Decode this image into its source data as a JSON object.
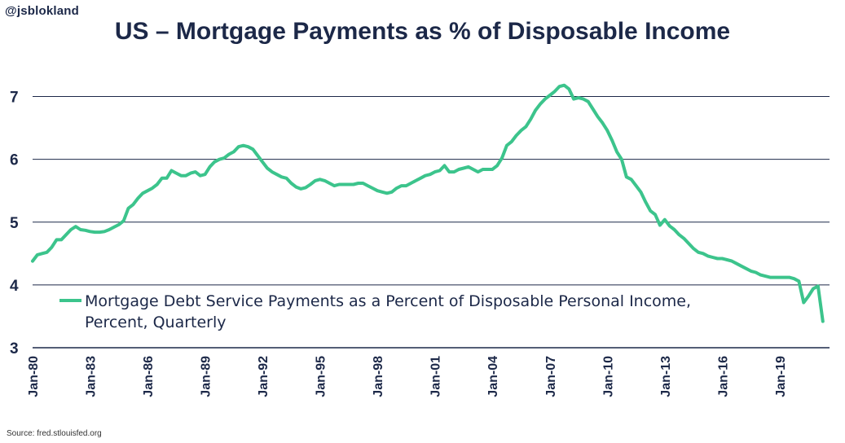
{
  "header": {
    "handle": "@jsblokland",
    "title": "US – Mortgage Payments as % of Disposable Income"
  },
  "footer": {
    "source": "Source: fred.stlouisfed.org"
  },
  "colors": {
    "line": "#3cc48c",
    "text": "#1c2848",
    "grid": "#1c2848"
  },
  "chart_data": {
    "type": "line",
    "title": "US – Mortgage Payments as % of Disposable Income",
    "xlabel": "",
    "ylabel": "",
    "ylim": [
      3,
      7.5
    ],
    "yticks": [
      3,
      4,
      5,
      6,
      7
    ],
    "xlim": [
      1980,
      2021.6
    ],
    "xticks": [
      {
        "label": "Jan-80",
        "year": 1980
      },
      {
        "label": "Jan-83",
        "year": 1983
      },
      {
        "label": "Jan-86",
        "year": 1986
      },
      {
        "label": "Jan-89",
        "year": 1989
      },
      {
        "label": "Jan-92",
        "year": 1992
      },
      {
        "label": "Jan-95",
        "year": 1995
      },
      {
        "label": "Jan-98",
        "year": 1998
      },
      {
        "label": "Jan-01",
        "year": 2001
      },
      {
        "label": "Jan-04",
        "year": 2004
      },
      {
        "label": "Jan-07",
        "year": 2007
      },
      {
        "label": "Jan-10",
        "year": 2010
      },
      {
        "label": "Jan-13",
        "year": 2013
      },
      {
        "label": "Jan-16",
        "year": 2016
      },
      {
        "label": "Jan-19",
        "year": 2019
      }
    ],
    "grid": "horizontal",
    "legend_placement": "lower-left",
    "series": [
      {
        "name": "Mortgage Debt Service Payments as a Percent of Disposable Personal Income, Percent, Quarterly",
        "legend_lines": [
          "Mortgage Debt Service Payments as a Percent of Disposable Personal Income,",
          "Percent, Quarterly"
        ],
        "x": [
          1980.0,
          1980.25,
          1980.5,
          1980.75,
          1981.0,
          1981.25,
          1981.5,
          1981.75,
          1982.0,
          1982.25,
          1982.5,
          1982.75,
          1983.0,
          1983.25,
          1983.5,
          1983.75,
          1984.0,
          1984.25,
          1984.5,
          1984.75,
          1985.0,
          1985.25,
          1985.5,
          1985.75,
          1986.0,
          1986.25,
          1986.5,
          1986.75,
          1987.0,
          1987.25,
          1987.5,
          1987.75,
          1988.0,
          1988.25,
          1988.5,
          1988.75,
          1989.0,
          1989.25,
          1989.5,
          1989.75,
          1990.0,
          1990.25,
          1990.5,
          1990.75,
          1991.0,
          1991.25,
          1991.5,
          1991.75,
          1992.0,
          1992.25,
          1992.5,
          1992.75,
          1993.0,
          1993.25,
          1993.5,
          1993.75,
          1994.0,
          1994.25,
          1994.5,
          1994.75,
          1995.0,
          1995.25,
          1995.5,
          1995.75,
          1996.0,
          1996.25,
          1996.5,
          1996.75,
          1997.0,
          1997.25,
          1997.5,
          1997.75,
          1998.0,
          1998.25,
          1998.5,
          1998.75,
          1999.0,
          1999.25,
          1999.5,
          1999.75,
          2000.0,
          2000.25,
          2000.5,
          2000.75,
          2001.0,
          2001.25,
          2001.5,
          2001.75,
          2002.0,
          2002.25,
          2002.5,
          2002.75,
          2003.0,
          2003.25,
          2003.5,
          2003.75,
          2004.0,
          2004.25,
          2004.5,
          2004.75,
          2005.0,
          2005.25,
          2005.5,
          2005.75,
          2006.0,
          2006.25,
          2006.5,
          2006.75,
          2007.0,
          2007.25,
          2007.5,
          2007.75,
          2008.0,
          2008.25,
          2008.5,
          2008.75,
          2009.0,
          2009.25,
          2009.5,
          2009.75,
          2010.0,
          2010.25,
          2010.5,
          2010.75,
          2011.0,
          2011.25,
          2011.5,
          2011.75,
          2012.0,
          2012.25,
          2012.5,
          2012.75,
          2013.0,
          2013.25,
          2013.5,
          2013.75,
          2014.0,
          2014.25,
          2014.5,
          2014.75,
          2015.0,
          2015.25,
          2015.5,
          2015.75,
          2016.0,
          2016.25,
          2016.5,
          2016.75,
          2017.0,
          2017.25,
          2017.5,
          2017.75,
          2018.0,
          2018.25,
          2018.5,
          2018.75,
          2019.0,
          2019.25,
          2019.5,
          2019.75,
          2020.0,
          2020.25,
          2020.5,
          2020.75,
          2021.0,
          2021.25
        ],
        "values": [
          4.38,
          4.48,
          4.5,
          4.52,
          4.6,
          4.72,
          4.72,
          4.8,
          4.88,
          4.93,
          4.88,
          4.87,
          4.85,
          4.84,
          4.84,
          4.85,
          4.88,
          4.92,
          4.96,
          5.02,
          5.22,
          5.28,
          5.38,
          5.46,
          5.5,
          5.54,
          5.6,
          5.7,
          5.7,
          5.82,
          5.78,
          5.74,
          5.74,
          5.78,
          5.8,
          5.74,
          5.76,
          5.88,
          5.96,
          6.0,
          6.02,
          6.08,
          6.12,
          6.2,
          6.22,
          6.2,
          6.16,
          6.06,
          5.96,
          5.86,
          5.8,
          5.76,
          5.72,
          5.7,
          5.62,
          5.56,
          5.53,
          5.55,
          5.6,
          5.66,
          5.68,
          5.66,
          5.62,
          5.58,
          5.6,
          5.6,
          5.6,
          5.6,
          5.62,
          5.62,
          5.58,
          5.54,
          5.5,
          5.48,
          5.46,
          5.48,
          5.54,
          5.58,
          5.58,
          5.62,
          5.66,
          5.7,
          5.74,
          5.76,
          5.8,
          5.82,
          5.9,
          5.8,
          5.8,
          5.84,
          5.86,
          5.88,
          5.84,
          5.8,
          5.84,
          5.84,
          5.84,
          5.9,
          6.02,
          6.22,
          6.28,
          6.38,
          6.46,
          6.52,
          6.64,
          6.78,
          6.88,
          6.96,
          7.02,
          7.08,
          7.16,
          7.18,
          7.12,
          6.96,
          6.98,
          6.96,
          6.92,
          6.8,
          6.68,
          6.58,
          6.46,
          6.3,
          6.12,
          6.0,
          5.72,
          5.68,
          5.58,
          5.48,
          5.32,
          5.18,
          5.12,
          4.95,
          5.04,
          4.94,
          4.88,
          4.8,
          4.74,
          4.66,
          4.58,
          4.52,
          4.5,
          4.46,
          4.44,
          4.42,
          4.42,
          4.4,
          4.38,
          4.34,
          4.3,
          4.26,
          4.22,
          4.2,
          4.16,
          4.14,
          4.12,
          4.12,
          4.12,
          4.12,
          4.12,
          4.1,
          4.06,
          3.72,
          3.82,
          3.94,
          3.98,
          3.42
        ]
      }
    ]
  }
}
